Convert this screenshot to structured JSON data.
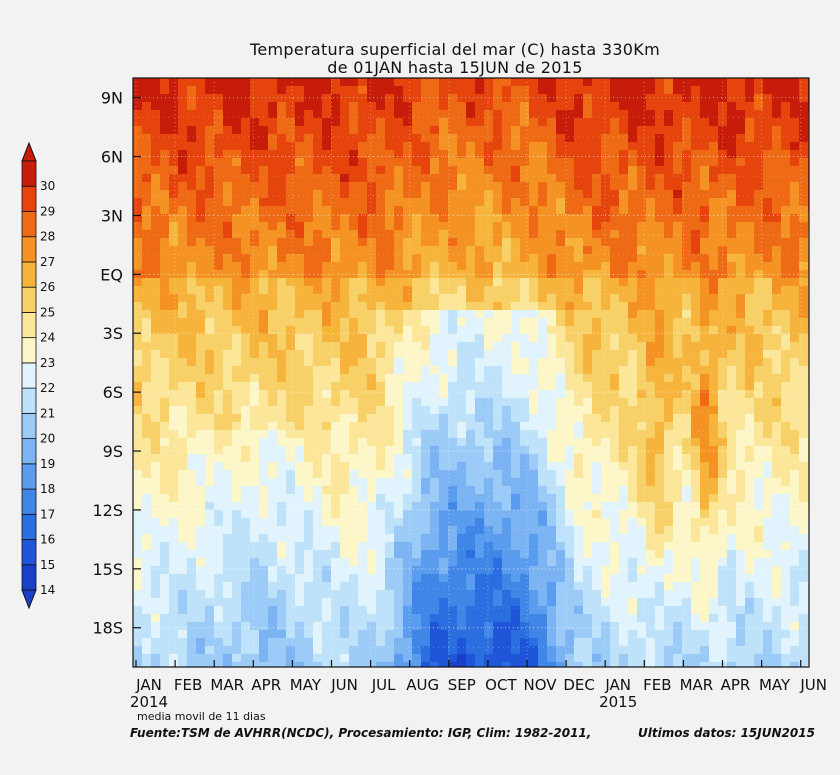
{
  "chart_data": {
    "type": "heatmap",
    "title": "Temperatura superficial del mar (C) hasta 330Km",
    "subtitle": "de 01JAN hasta 15JUN de 2015",
    "x_tick_labels": [
      "JAN",
      "FEB",
      "MAR",
      "APR",
      "MAY",
      "JUN",
      "JUL",
      "AUG",
      "SEP",
      "OCT",
      "NOV",
      "DEC",
      "JAN",
      "FEB",
      "MAR",
      "APR",
      "MAY",
      "JUN"
    ],
    "x_year_labels": [
      {
        "label": "2014",
        "month_index": 0
      },
      {
        "label": "2015",
        "month_index": 12
      }
    ],
    "y_tick_labels": [
      "9N",
      "6N",
      "3N",
      "EQ",
      "3S",
      "6S",
      "9S",
      "12S",
      "15S",
      "18S"
    ],
    "y_values": [
      9,
      6,
      3,
      0,
      -3,
      -6,
      -9,
      -12,
      -15,
      -18
    ],
    "y_range": [
      -20,
      10
    ],
    "colorbar": {
      "labels": [
        "14",
        "15",
        "16",
        "17",
        "18",
        "19",
        "20",
        "21",
        "22",
        "23",
        "24",
        "25",
        "26",
        "27",
        "28",
        "29",
        "30"
      ],
      "values": [
        14,
        15,
        16,
        17,
        18,
        19,
        20,
        21,
        22,
        23,
        24,
        25,
        26,
        27,
        28,
        29,
        30
      ],
      "colors": [
        "#1a3fc8",
        "#1f55d8",
        "#2a6ee0",
        "#3f86e6",
        "#5a9cee",
        "#7bb3f3",
        "#9ccbf7",
        "#bfe2fb",
        "#e1f4fd",
        "#fdf6c9",
        "#fbe69a",
        "#f8d068",
        "#f6b43c",
        "#f49323",
        "#ef6a15",
        "#e5440d",
        "#c81c0a"
      ]
    },
    "grid": true
  },
  "footer": {
    "line1": "media movil de 11 dias",
    "line2": "Fuente:TSM de AVHRR(NCDC), Procesamiento: IGP, Clim: 1982-2011,",
    "line3": "Ultimos datos: 15JUN2015"
  }
}
